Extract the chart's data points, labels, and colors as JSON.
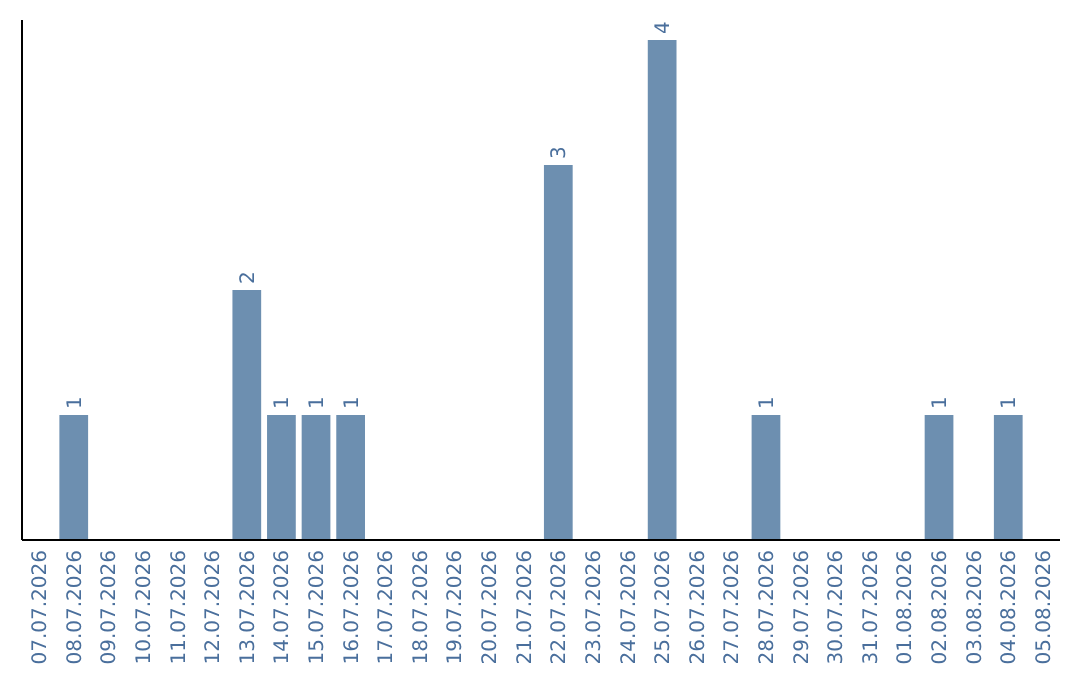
{
  "chart_data": {
    "type": "bar",
    "categories": [
      "07.07.2026",
      "08.07.2026",
      "09.07.2026",
      "10.07.2026",
      "11.07.2026",
      "12.07.2026",
      "13.07.2026",
      "14.07.2026",
      "15.07.2026",
      "16.07.2026",
      "17.07.2026",
      "18.07.2026",
      "19.07.2026",
      "20.07.2026",
      "21.07.2026",
      "22.07.2026",
      "23.07.2026",
      "24.07.2026",
      "25.07.2026",
      "26.07.2026",
      "27.07.2026",
      "28.07.2026",
      "29.07.2026",
      "30.07.2026",
      "31.07.2026",
      "01.08.2026",
      "02.08.2026",
      "03.08.2026",
      "04.08.2026",
      "05.08.2026"
    ],
    "values": [
      0,
      1,
      0,
      0,
      0,
      0,
      2,
      1,
      1,
      1,
      0,
      0,
      0,
      0,
      0,
      3,
      0,
      0,
      4,
      0,
      0,
      1,
      0,
      0,
      0,
      0,
      1,
      0,
      1,
      0
    ],
    "value_labels": [
      null,
      "1",
      null,
      null,
      null,
      null,
      "2",
      "1",
      "1",
      "1",
      null,
      null,
      null,
      null,
      null,
      "3",
      null,
      null,
      "4",
      null,
      null,
      "1",
      null,
      null,
      null,
      null,
      "1",
      null,
      "1",
      null
    ],
    "color": "#6d8fb0",
    "ylim": [
      0,
      4.16
    ],
    "tick_labels": "x"
  }
}
